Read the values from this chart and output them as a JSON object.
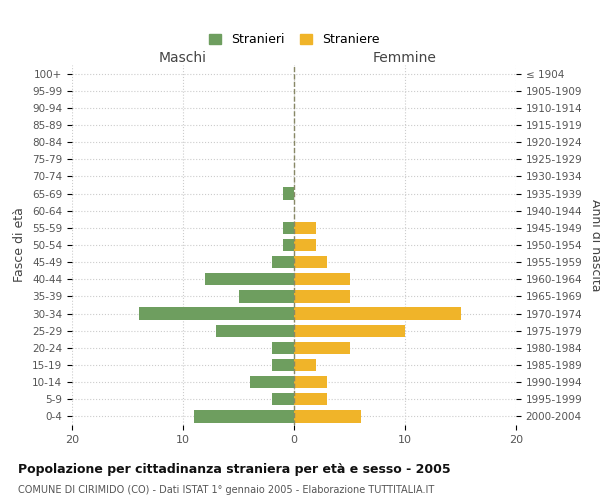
{
  "age_groups": [
    "100+",
    "95-99",
    "90-94",
    "85-89",
    "80-84",
    "75-79",
    "70-74",
    "65-69",
    "60-64",
    "55-59",
    "50-54",
    "45-49",
    "40-44",
    "35-39",
    "30-34",
    "25-29",
    "20-24",
    "15-19",
    "10-14",
    "5-9",
    "0-4"
  ],
  "birth_years": [
    "≤ 1904",
    "1905-1909",
    "1910-1914",
    "1915-1919",
    "1920-1924",
    "1925-1929",
    "1930-1934",
    "1935-1939",
    "1940-1944",
    "1945-1949",
    "1950-1954",
    "1955-1959",
    "1960-1964",
    "1965-1969",
    "1970-1974",
    "1975-1979",
    "1980-1984",
    "1985-1989",
    "1990-1994",
    "1995-1999",
    "2000-2004"
  ],
  "maschi": [
    0,
    0,
    0,
    0,
    0,
    0,
    0,
    1,
    0,
    1,
    1,
    2,
    8,
    5,
    14,
    7,
    2,
    2,
    4,
    2,
    9
  ],
  "femmine": [
    0,
    0,
    0,
    0,
    0,
    0,
    0,
    0,
    0,
    2,
    2,
    3,
    5,
    5,
    15,
    10,
    5,
    2,
    3,
    3,
    6
  ],
  "maschi_color": "#6e9e5f",
  "femmine_color": "#f0b429",
  "title": "Popolazione per cittadinanza straniera per età e sesso - 2005",
  "subtitle": "COMUNE DI CIRIMIDO (CO) - Dati ISTAT 1° gennaio 2005 - Elaborazione TUTTITALIA.IT",
  "xlabel_left": "Maschi",
  "xlabel_right": "Femmine",
  "ylabel_left": "Fasce di età",
  "ylabel_right": "Anni di nascita",
  "xlim": 20,
  "legend_stranieri": "Stranieri",
  "legend_straniere": "Straniere",
  "background_color": "#ffffff",
  "grid_color": "#cccccc"
}
